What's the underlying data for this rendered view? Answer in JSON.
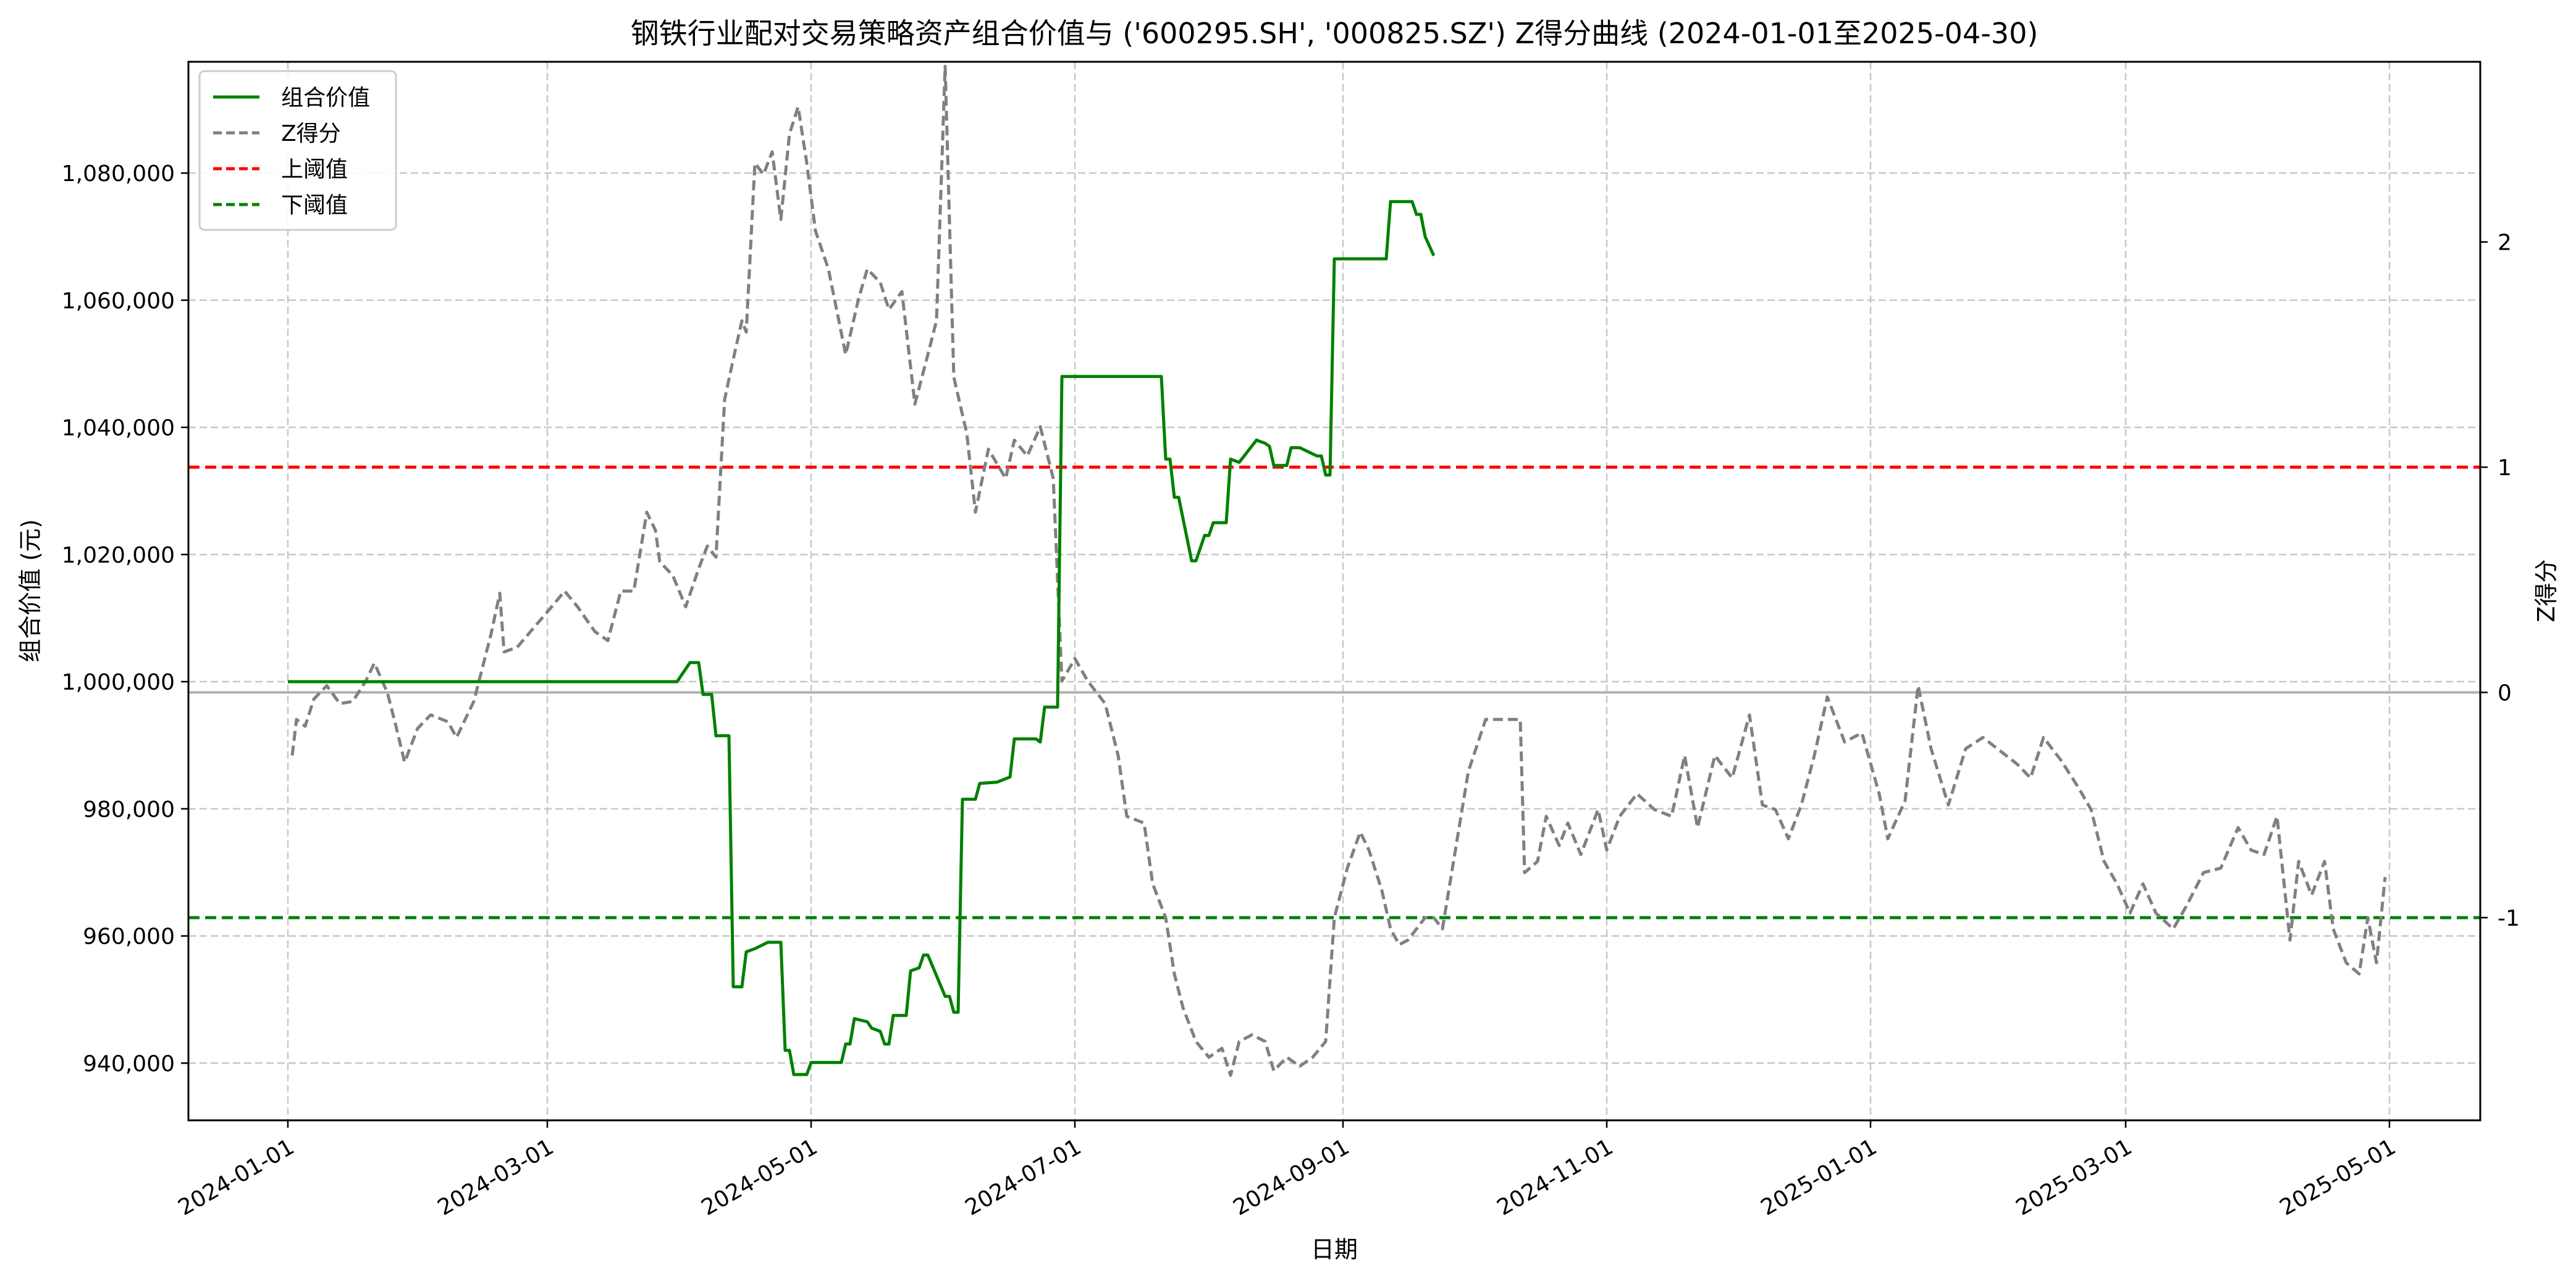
{
  "chart_data": {
    "type": "line",
    "title": "钢铁行业配对交易策略资产组合价值与 ('600295.SH', '000825.SZ') Z得分曲线 (2024-01-01至2025-04-30)",
    "xlabel": "日期",
    "ylabel": "组合价值 (元)",
    "y2label": "Z得分",
    "xlim": [
      "2023-12-09",
      "2025-05-22"
    ],
    "ylim": [
      931000,
      1097500
    ],
    "y2lim": [
      -1.9,
      2.8
    ],
    "grid": true,
    "legend_position": "top-left",
    "x_ticks": [
      "2024-01-01",
      "2024-03-01",
      "2024-05-01",
      "2024-07-01",
      "2024-09-01",
      "2024-11-01",
      "2025-01-01",
      "2025-03-01",
      "2025-05-01"
    ],
    "y_ticks": [
      940000,
      960000,
      980000,
      1000000,
      1020000,
      1040000,
      1060000,
      1080000
    ],
    "y_tick_labels": [
      "940,000",
      "960,000",
      "980,000",
      "1,000,000",
      "1,020,000",
      "1,040,000",
      "1,060,000",
      "1,080,000"
    ],
    "y2_ticks": [
      -1,
      0,
      1,
      2
    ],
    "y2_tick_labels": [
      "-1",
      "0",
      "1",
      "2"
    ],
    "legend": [
      {
        "label": "组合价值",
        "color": "#008000",
        "dash": "solid"
      },
      {
        "label": "Z得分",
        "color": "#808080",
        "dash": "dashed"
      },
      {
        "label": "上阈值",
        "color": "#ff0000",
        "dash": "dashed"
      },
      {
        "label": "下阈值",
        "color": "#008000",
        "dash": "dashed"
      }
    ],
    "thresholds": {
      "upper": 1,
      "lower": -1,
      "zero": 0,
      "upper_color": "#ff0000",
      "lower_color": "#008000",
      "zero_color": "#b0b0b0"
    },
    "series": [
      {
        "name": "组合价值",
        "axis": "left",
        "color": "#008000",
        "dash": "solid",
        "points": [
          [
            "2024-01-01",
            1000000
          ],
          [
            "2024-03-31",
            1000000
          ],
          [
            "2024-04-03",
            1003000
          ],
          [
            "2024-04-05",
            1003000
          ],
          [
            "2024-04-06",
            998000
          ],
          [
            "2024-04-08",
            998000
          ],
          [
            "2024-04-09",
            991500
          ],
          [
            "2024-04-12",
            991500
          ],
          [
            "2024-04-13",
            952000
          ],
          [
            "2024-04-15",
            952000
          ],
          [
            "2024-04-16",
            957500
          ],
          [
            "2024-04-18",
            958000
          ],
          [
            "2024-04-21",
            959000
          ],
          [
            "2024-04-24",
            959000
          ],
          [
            "2024-04-25",
            942000
          ],
          [
            "2024-04-26",
            942000
          ],
          [
            "2024-04-27",
            938200
          ],
          [
            "2024-04-30",
            938200
          ],
          [
            "2024-05-01",
            940100
          ],
          [
            "2024-05-08",
            940100
          ],
          [
            "2024-05-09",
            943000
          ],
          [
            "2024-05-10",
            943000
          ],
          [
            "2024-05-11",
            947000
          ],
          [
            "2024-05-14",
            946500
          ],
          [
            "2024-05-15",
            945500
          ],
          [
            "2024-05-17",
            945000
          ],
          [
            "2024-05-18",
            943000
          ],
          [
            "2024-05-19",
            943000
          ],
          [
            "2024-05-20",
            947500
          ],
          [
            "2024-05-23",
            947500
          ],
          [
            "2024-05-24",
            954500
          ],
          [
            "2024-05-26",
            955000
          ],
          [
            "2024-05-27",
            957000
          ],
          [
            "2024-05-28",
            957000
          ],
          [
            "2024-06-01",
            950500
          ],
          [
            "2024-06-02",
            950500
          ],
          [
            "2024-06-03",
            948000
          ],
          [
            "2024-06-04",
            948000
          ],
          [
            "2024-06-05",
            981500
          ],
          [
            "2024-06-08",
            981500
          ],
          [
            "2024-06-09",
            984000
          ],
          [
            "2024-06-13",
            984200
          ],
          [
            "2024-06-16",
            985000
          ],
          [
            "2024-06-17",
            991000
          ],
          [
            "2024-06-22",
            991000
          ],
          [
            "2024-06-23",
            990500
          ],
          [
            "2024-06-24",
            996000
          ],
          [
            "2024-06-27",
            996000
          ],
          [
            "2024-06-28",
            1048000
          ],
          [
            "2024-07-21",
            1048000
          ],
          [
            "2024-07-22",
            1035000
          ],
          [
            "2024-07-23",
            1035000
          ],
          [
            "2024-07-24",
            1029000
          ],
          [
            "2024-07-25",
            1029000
          ],
          [
            "2024-07-28",
            1019000
          ],
          [
            "2024-07-29",
            1019000
          ],
          [
            "2024-07-31",
            1023000
          ],
          [
            "2024-08-01",
            1023000
          ],
          [
            "2024-08-02",
            1025000
          ],
          [
            "2024-08-05",
            1025000
          ],
          [
            "2024-08-06",
            1035000
          ],
          [
            "2024-08-08",
            1034500
          ],
          [
            "2024-08-12",
            1038000
          ],
          [
            "2024-08-14",
            1037500
          ],
          [
            "2024-08-15",
            1037000
          ],
          [
            "2024-08-16",
            1034000
          ],
          [
            "2024-08-19",
            1034000
          ],
          [
            "2024-08-20",
            1036800
          ],
          [
            "2024-08-22",
            1036800
          ],
          [
            "2024-08-26",
            1035500
          ],
          [
            "2024-08-27",
            1035500
          ],
          [
            "2024-08-28",
            1032500
          ],
          [
            "2024-08-29",
            1032500
          ],
          [
            "2024-08-30",
            1066500
          ],
          [
            "2024-09-11",
            1066500
          ],
          [
            "2024-09-12",
            1075500
          ],
          [
            "2024-09-17",
            1075500
          ],
          [
            "2024-09-18",
            1073500
          ],
          [
            "2024-09-19",
            1073500
          ],
          [
            "2024-09-20",
            1070000
          ],
          [
            "2024-09-22",
            1067000
          ],
          [
            "2024-03-01",
            1000000
          ]
        ]
      },
      {
        "name": "Z得分",
        "axis": "right",
        "color": "#808080",
        "dash": "dashed",
        "points": [
          [
            "2024-01-02",
            -0.28
          ],
          [
            "2024-01-03",
            -0.12
          ],
          [
            "2024-01-05",
            -0.15
          ],
          [
            "2024-01-07",
            -0.03
          ],
          [
            "2024-01-10",
            0.03
          ],
          [
            "2024-01-13",
            -0.05
          ],
          [
            "2024-01-16",
            -0.04
          ],
          [
            "2024-01-19",
            0.05
          ],
          [
            "2024-01-21",
            0.13
          ],
          [
            "2024-01-24",
            0.0
          ],
          [
            "2024-01-26",
            -0.15
          ],
          [
            "2024-01-28",
            -0.31
          ],
          [
            "2024-01-31",
            -0.16
          ],
          [
            "2024-02-03",
            -0.1
          ],
          [
            "2024-02-07",
            -0.13
          ],
          [
            "2024-02-09",
            -0.2
          ],
          [
            "2024-02-13",
            -0.04
          ],
          [
            "2024-02-17",
            0.26
          ],
          [
            "2024-02-19",
            0.44
          ],
          [
            "2024-02-20",
            0.18
          ],
          [
            "2024-02-23",
            0.2
          ],
          [
            "2024-02-27",
            0.29
          ],
          [
            "2024-03-02",
            0.38
          ],
          [
            "2024-03-05",
            0.45
          ],
          [
            "2024-03-08",
            0.38
          ],
          [
            "2024-03-12",
            0.27
          ],
          [
            "2024-03-15",
            0.23
          ],
          [
            "2024-03-18",
            0.45
          ],
          [
            "2024-03-21",
            0.45
          ],
          [
            "2024-03-24",
            0.8
          ],
          [
            "2024-03-26",
            0.72
          ],
          [
            "2024-03-27",
            0.58
          ],
          [
            "2024-03-30",
            0.52
          ],
          [
            "2024-04-02",
            0.38
          ],
          [
            "2024-04-05",
            0.55
          ],
          [
            "2024-04-07",
            0.65
          ],
          [
            "2024-04-09",
            0.6
          ],
          [
            "2024-04-11",
            1.3
          ],
          [
            "2024-04-13",
            1.48
          ],
          [
            "2024-04-15",
            1.65
          ],
          [
            "2024-04-16",
            1.6
          ],
          [
            "2024-04-18",
            2.35
          ],
          [
            "2024-04-20",
            2.3
          ],
          [
            "2024-04-22",
            2.4
          ],
          [
            "2024-04-24",
            2.1
          ],
          [
            "2024-04-26",
            2.48
          ],
          [
            "2024-04-28",
            2.6
          ],
          [
            "2024-04-30",
            2.35
          ],
          [
            "2024-05-02",
            2.05
          ],
          [
            "2024-05-05",
            1.88
          ],
          [
            "2024-05-09",
            1.5
          ],
          [
            "2024-05-12",
            1.75
          ],
          [
            "2024-05-14",
            1.88
          ],
          [
            "2024-05-17",
            1.82
          ],
          [
            "2024-05-19",
            1.7
          ],
          [
            "2024-05-22",
            1.78
          ],
          [
            "2024-05-25",
            1.28
          ],
          [
            "2024-05-28",
            1.5
          ],
          [
            "2024-05-30",
            1.65
          ],
          [
            "2024-06-01",
            2.78
          ],
          [
            "2024-06-03",
            1.4
          ],
          [
            "2024-06-06",
            1.15
          ],
          [
            "2024-06-08",
            0.8
          ],
          [
            "2024-06-11",
            1.08
          ],
          [
            "2024-06-15",
            0.95
          ],
          [
            "2024-06-17",
            1.12
          ],
          [
            "2024-06-20",
            1.05
          ],
          [
            "2024-06-23",
            1.18
          ],
          [
            "2024-06-26",
            0.95
          ],
          [
            "2024-06-28",
            0.05
          ],
          [
            "2024-07-01",
            0.15
          ],
          [
            "2024-07-04",
            0.05
          ],
          [
            "2024-07-08",
            -0.05
          ],
          [
            "2024-07-11",
            -0.28
          ],
          [
            "2024-07-13",
            -0.55
          ],
          [
            "2024-07-17",
            -0.58
          ],
          [
            "2024-07-19",
            -0.85
          ],
          [
            "2024-07-22",
            -1.0
          ],
          [
            "2024-07-24",
            -1.25
          ],
          [
            "2024-07-26",
            -1.4
          ],
          [
            "2024-07-29",
            -1.55
          ],
          [
            "2024-08-01",
            -1.62
          ],
          [
            "2024-08-04",
            -1.58
          ],
          [
            "2024-08-06",
            -1.7
          ],
          [
            "2024-08-08",
            -1.55
          ],
          [
            "2024-08-11",
            -1.52
          ],
          [
            "2024-08-14",
            -1.55
          ],
          [
            "2024-08-16",
            -1.68
          ],
          [
            "2024-08-19",
            -1.62
          ],
          [
            "2024-08-22",
            -1.66
          ],
          [
            "2024-08-25",
            -1.62
          ],
          [
            "2024-08-28",
            -1.55
          ],
          [
            "2024-08-30",
            -1.0
          ],
          [
            "2024-09-02",
            -0.78
          ],
          [
            "2024-09-05",
            -0.62
          ],
          [
            "2024-09-07",
            -0.7
          ],
          [
            "2024-09-10",
            -0.88
          ],
          [
            "2024-09-12",
            -1.05
          ],
          [
            "2024-09-14",
            -1.12
          ],
          [
            "2024-09-16",
            -1.1
          ],
          [
            "2024-09-20",
            -1.0
          ],
          [
            "2024-09-22",
            -1.0
          ],
          [
            "2024-09-24",
            -1.05
          ],
          [
            "2024-09-27",
            -0.7
          ],
          [
            "2024-09-30",
            -0.35
          ],
          [
            "2024-10-04",
            -0.12
          ],
          [
            "2024-10-12",
            -0.12
          ],
          [
            "2024-10-13",
            -0.8
          ],
          [
            "2024-10-16",
            -0.75
          ],
          [
            "2024-10-18",
            -0.55
          ],
          [
            "2024-10-21",
            -0.68
          ],
          [
            "2024-10-23",
            -0.58
          ],
          [
            "2024-10-26",
            -0.72
          ],
          [
            "2024-10-30",
            -0.52
          ],
          [
            "2024-11-01",
            -0.7
          ],
          [
            "2024-11-04",
            -0.55
          ],
          [
            "2024-11-08",
            -0.45
          ],
          [
            "2024-11-12",
            -0.52
          ],
          [
            "2024-11-16",
            -0.55
          ],
          [
            "2024-11-19",
            -0.28
          ],
          [
            "2024-11-22",
            -0.6
          ],
          [
            "2024-11-26",
            -0.28
          ],
          [
            "2024-11-30",
            -0.38
          ],
          [
            "2024-12-04",
            -0.1
          ],
          [
            "2024-12-07",
            -0.5
          ],
          [
            "2024-12-10",
            -0.52
          ],
          [
            "2024-12-13",
            -0.65
          ],
          [
            "2024-12-16",
            -0.5
          ],
          [
            "2024-12-19",
            -0.28
          ],
          [
            "2024-12-22",
            -0.02
          ],
          [
            "2024-12-26",
            -0.22
          ],
          [
            "2024-12-30",
            -0.18
          ],
          [
            "2025-01-03",
            -0.45
          ],
          [
            "2025-01-05",
            -0.65
          ],
          [
            "2025-01-09",
            -0.48
          ],
          [
            "2025-01-12",
            0.03
          ],
          [
            "2025-01-15",
            -0.25
          ],
          [
            "2025-01-19",
            -0.5
          ],
          [
            "2025-01-23",
            -0.25
          ],
          [
            "2025-01-27",
            -0.2
          ],
          [
            "2025-02-04",
            -0.32
          ],
          [
            "2025-02-07",
            -0.38
          ],
          [
            "2025-02-10",
            -0.2
          ],
          [
            "2025-02-14",
            -0.3
          ],
          [
            "2025-02-18",
            -0.42
          ],
          [
            "2025-02-21",
            -0.52
          ],
          [
            "2025-02-24",
            -0.75
          ],
          [
            "2025-02-27",
            -0.85
          ],
          [
            "2025-03-02",
            -0.98
          ],
          [
            "2025-03-05",
            -0.85
          ],
          [
            "2025-03-08",
            -0.98
          ],
          [
            "2025-03-12",
            -1.05
          ],
          [
            "2025-03-15",
            -0.95
          ],
          [
            "2025-03-19",
            -0.8
          ],
          [
            "2025-03-23",
            -0.78
          ],
          [
            "2025-03-27",
            -0.6
          ],
          [
            "2025-03-30",
            -0.7
          ],
          [
            "2025-04-02",
            -0.72
          ],
          [
            "2025-04-05",
            -0.55
          ],
          [
            "2025-04-08",
            -1.1
          ],
          [
            "2025-04-10",
            -0.75
          ],
          [
            "2025-04-13",
            -0.9
          ],
          [
            "2025-04-16",
            -0.75
          ],
          [
            "2025-04-18",
            -1.05
          ],
          [
            "2025-04-21",
            -1.2
          ],
          [
            "2025-04-24",
            -1.25
          ],
          [
            "2025-04-26",
            -1.0
          ],
          [
            "2025-04-28",
            -1.2
          ],
          [
            "2025-04-30",
            -0.82
          ]
        ]
      }
    ]
  }
}
